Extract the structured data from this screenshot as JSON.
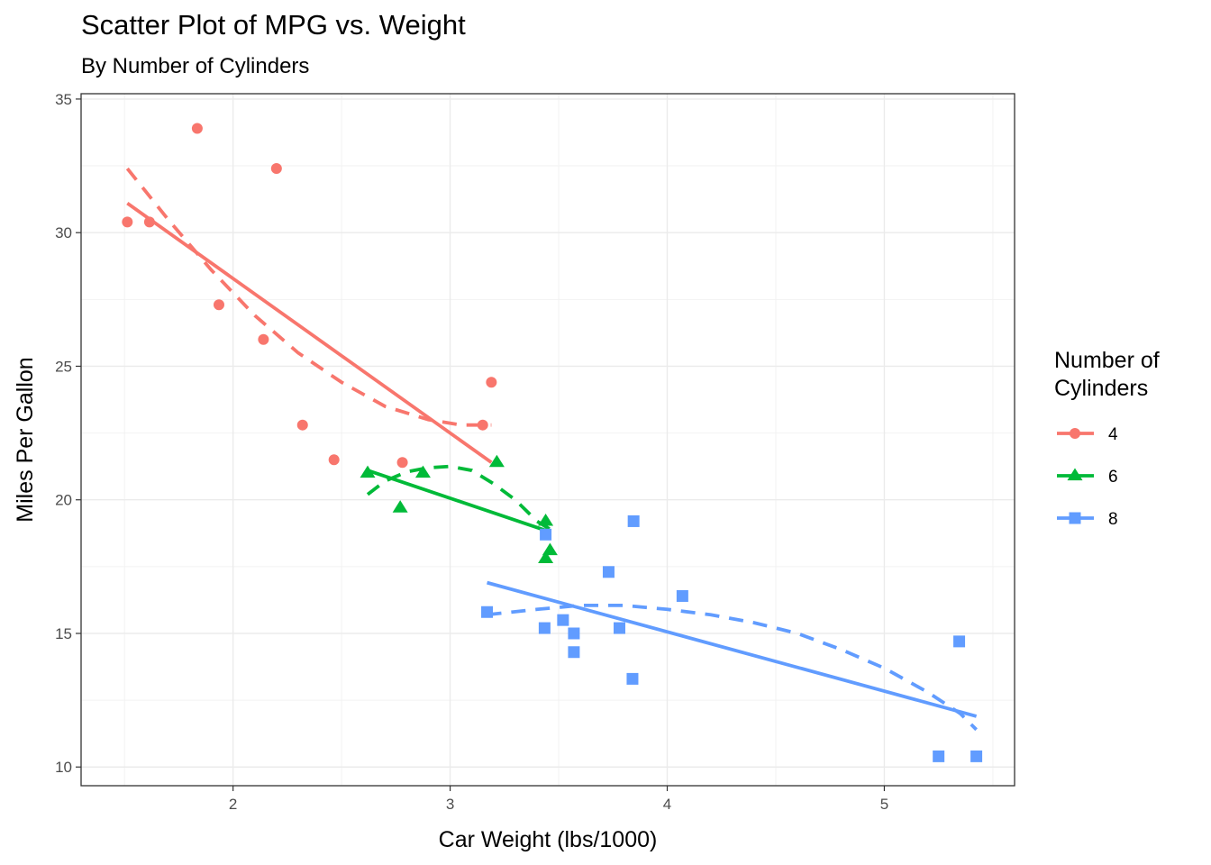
{
  "chart_data": {
    "type": "scatter",
    "title": "Scatter Plot of MPG vs. Weight",
    "subtitle": "By Number of Cylinders",
    "xlabel": "Car Weight (lbs/1000)",
    "ylabel": "Miles Per Gallon",
    "xlim": [
      1.3,
      5.6
    ],
    "ylim": [
      9.3,
      35.2
    ],
    "x_ticks": [
      2,
      3,
      4,
      5
    ],
    "y_ticks": [
      10,
      15,
      20,
      25,
      30,
      35
    ],
    "grid": true,
    "legend": {
      "title": "Number of Cylinders",
      "title_lines": [
        "Number of",
        "Cylinders"
      ],
      "position": "right"
    },
    "series": [
      {
        "name": "4",
        "color": "#F8766D",
        "marker": "circle",
        "points": [
          {
            "x": 1.513,
            "y": 30.4
          },
          {
            "x": 1.615,
            "y": 30.4
          },
          {
            "x": 1.835,
            "y": 33.9
          },
          {
            "x": 1.935,
            "y": 27.3
          },
          {
            "x": 2.14,
            "y": 26.0
          },
          {
            "x": 2.2,
            "y": 32.4
          },
          {
            "x": 2.32,
            "y": 22.8
          },
          {
            "x": 2.465,
            "y": 21.5
          },
          {
            "x": 2.78,
            "y": 21.4
          },
          {
            "x": 3.15,
            "y": 22.8
          },
          {
            "x": 3.19,
            "y": 24.4
          }
        ],
        "fit_line": [
          {
            "x": 1.513,
            "y": 31.1
          },
          {
            "x": 3.19,
            "y": 21.4
          }
        ],
        "loess": [
          {
            "x": 1.513,
            "y": 32.4
          },
          {
            "x": 1.7,
            "y": 30.5
          },
          {
            "x": 1.9,
            "y": 28.6
          },
          {
            "x": 2.1,
            "y": 26.9
          },
          {
            "x": 2.3,
            "y": 25.5
          },
          {
            "x": 2.5,
            "y": 24.4
          },
          {
            "x": 2.7,
            "y": 23.5
          },
          {
            "x": 2.9,
            "y": 23.0
          },
          {
            "x": 3.05,
            "y": 22.8
          },
          {
            "x": 3.19,
            "y": 22.8
          }
        ]
      },
      {
        "name": "6",
        "color": "#00BA38",
        "marker": "triangle",
        "points": [
          {
            "x": 2.62,
            "y": 21.0
          },
          {
            "x": 2.77,
            "y": 19.7
          },
          {
            "x": 2.875,
            "y": 21.0
          },
          {
            "x": 3.215,
            "y": 21.4
          },
          {
            "x": 3.44,
            "y": 19.2
          },
          {
            "x": 3.44,
            "y": 17.8
          },
          {
            "x": 3.46,
            "y": 18.1
          }
        ],
        "fit_line": [
          {
            "x": 2.62,
            "y": 21.1
          },
          {
            "x": 3.46,
            "y": 18.8
          }
        ],
        "loess": [
          {
            "x": 2.62,
            "y": 20.2
          },
          {
            "x": 2.7,
            "y": 20.7
          },
          {
            "x": 2.8,
            "y": 21.05
          },
          {
            "x": 2.9,
            "y": 21.2
          },
          {
            "x": 3.0,
            "y": 21.25
          },
          {
            "x": 3.1,
            "y": 21.1
          },
          {
            "x": 3.2,
            "y": 20.6
          },
          {
            "x": 3.3,
            "y": 20.0
          },
          {
            "x": 3.4,
            "y": 19.2
          },
          {
            "x": 3.46,
            "y": 18.9
          }
        ]
      },
      {
        "name": "8",
        "color": "#619CFF",
        "marker": "square",
        "points": [
          {
            "x": 3.17,
            "y": 15.8
          },
          {
            "x": 3.435,
            "y": 15.2
          },
          {
            "x": 3.44,
            "y": 18.7
          },
          {
            "x": 3.52,
            "y": 15.5
          },
          {
            "x": 3.57,
            "y": 14.3
          },
          {
            "x": 3.57,
            "y": 15.0
          },
          {
            "x": 3.73,
            "y": 17.3
          },
          {
            "x": 3.78,
            "y": 15.2
          },
          {
            "x": 3.84,
            "y": 13.3
          },
          {
            "x": 3.845,
            "y": 19.2
          },
          {
            "x": 4.07,
            "y": 16.4
          },
          {
            "x": 5.25,
            "y": 10.4
          },
          {
            "x": 5.345,
            "y": 14.7
          },
          {
            "x": 5.424,
            "y": 10.4
          }
        ],
        "fit_line": [
          {
            "x": 3.17,
            "y": 16.9
          },
          {
            "x": 5.424,
            "y": 11.9
          }
        ],
        "loess": [
          {
            "x": 3.17,
            "y": 15.7
          },
          {
            "x": 3.4,
            "y": 15.9
          },
          {
            "x": 3.6,
            "y": 16.05
          },
          {
            "x": 3.8,
            "y": 16.05
          },
          {
            "x": 4.0,
            "y": 15.9
          },
          {
            "x": 4.2,
            "y": 15.7
          },
          {
            "x": 4.4,
            "y": 15.4
          },
          {
            "x": 4.6,
            "y": 15.0
          },
          {
            "x": 4.8,
            "y": 14.4
          },
          {
            "x": 5.0,
            "y": 13.7
          },
          {
            "x": 5.2,
            "y": 12.8
          },
          {
            "x": 5.35,
            "y": 12.0
          },
          {
            "x": 5.424,
            "y": 11.4
          }
        ]
      }
    ]
  }
}
